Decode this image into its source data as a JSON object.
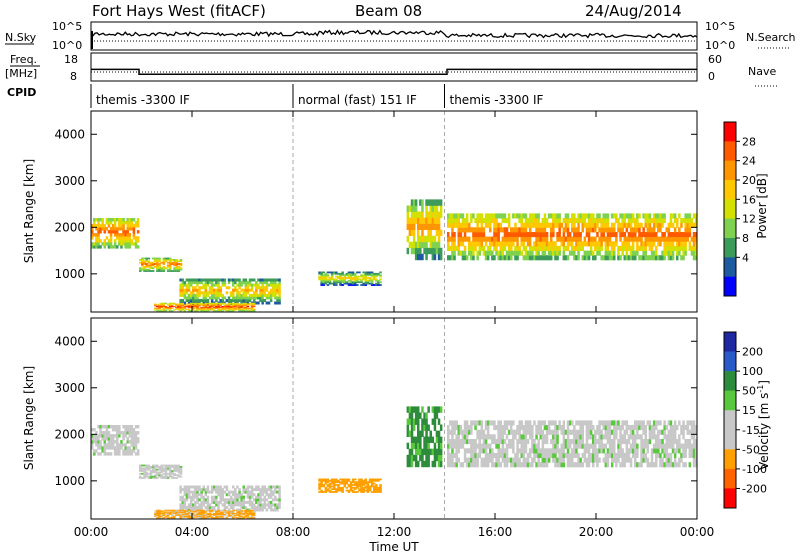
{
  "header": {
    "station": "Fort Hays West (fitACF)",
    "beam": "Beam 08",
    "date": "24/Aug/2014"
  },
  "noise_panel": {
    "left_label": "N.Sky",
    "right_label": "N.Search",
    "left_ticks": [
      "10^5",
      "10^0"
    ],
    "right_ticks": [
      "10^5",
      "10^0"
    ]
  },
  "freq_panel": {
    "left_label_1": "Freq.",
    "left_label_2": "[MHz]",
    "right_label": "Nave",
    "left_ticks": [
      "18",
      "8"
    ],
    "right_ticks": [
      "60",
      "0"
    ],
    "cpid_label": "CPID"
  },
  "cpid_segments": [
    {
      "label": "themis -3300 IF",
      "start_hour": 0,
      "end_hour": 8
    },
    {
      "label": "normal (fast) 151 IF",
      "start_hour": 8,
      "end_hour": 14
    },
    {
      "label": "themis -3300 IF",
      "start_hour": 14,
      "end_hour": 24
    }
  ],
  "power_panel": {
    "ylabel": "Slant Range [km]",
    "yticks": [
      "4000",
      "3000",
      "2000",
      "1000"
    ],
    "colorbar_label": "Power [dB]",
    "colorbar_ticks": [
      "28",
      "24",
      "20",
      "16",
      "12",
      "8",
      "4"
    ],
    "colorbar_colors": [
      "#ff0000",
      "#ff5a00",
      "#ff9600",
      "#ffc800",
      "#d2e100",
      "#7fd24f",
      "#3c9a5a",
      "#1e5aa0",
      "#0000ff"
    ]
  },
  "velocity_panel": {
    "ylabel": "Slant Range [km]",
    "yticks": [
      "4000",
      "3000",
      "2000",
      "1000"
    ],
    "colorbar_label": "Velocity [m s^-1]",
    "colorbar_ticks": [
      "200",
      "100",
      "50",
      "15",
      "-15",
      "-50",
      "-100",
      "-200"
    ],
    "colorbar_colors": [
      "#1e28a0",
      "#285ac8",
      "#2d8c3c",
      "#5ac83c",
      "#c8c8c8",
      "#c8c8c8",
      "#ffa000",
      "#ff6400",
      "#ff0000"
    ]
  },
  "xaxis": {
    "label": "Time UT",
    "ticks": [
      "00:00",
      "04:00",
      "08:00",
      "12:00",
      "16:00",
      "20:00",
      "00:00"
    ]
  },
  "chart_data": {
    "type": "heatmap",
    "title": "Fort Hays West (fitACF)",
    "xlabel": "Time UT",
    "ylabel": "Slant Range [km]",
    "xlim_hours": [
      0,
      24
    ],
    "ylim_km": [
      180,
      4500
    ],
    "frequency_mhz": [
      {
        "start_hour": 0,
        "end_hour": 1.9,
        "value": 12
      },
      {
        "start_hour": 1.9,
        "end_hour": 14.1,
        "value": 10
      },
      {
        "start_hour": 14.1,
        "end_hour": 24,
        "value": 12
      }
    ],
    "power_features": [
      {
        "name": "band-a",
        "start_hour": 0,
        "end_hour": 1.9,
        "range_km": [
          1550,
          2200
        ],
        "peak_db": 26
      },
      {
        "name": "band-b",
        "start_hour": 1.9,
        "end_hour": 3.6,
        "range_km": [
          1050,
          1350
        ],
        "peak_db": 24
      },
      {
        "name": "band-c",
        "start_hour": 3.5,
        "end_hour": 7.5,
        "range_km": [
          350,
          900
        ],
        "peak_db": 20
      },
      {
        "name": "band-d",
        "start_hour": 2.5,
        "end_hour": 6.5,
        "range_km": [
          200,
          380
        ],
        "peak_db": 28
      },
      {
        "name": "band-e",
        "start_hour": 9,
        "end_hour": 11.5,
        "range_km": [
          750,
          1050
        ],
        "peak_db": 18
      },
      {
        "name": "band-f",
        "start_hour": 12.5,
        "end_hour": 13.9,
        "range_km": [
          1300,
          2600
        ],
        "peak_db": 22
      },
      {
        "name": "band-g",
        "start_hour": 14.1,
        "end_hour": 24,
        "range_km": [
          1300,
          2300
        ],
        "peak_db": 26
      }
    ],
    "velocity_features": [
      {
        "name": "band-a",
        "start_hour": 0,
        "end_hour": 1.9,
        "range_km": [
          1550,
          2200
        ],
        "velocity": 0
      },
      {
        "name": "band-b",
        "start_hour": 1.9,
        "end_hour": 3.6,
        "range_km": [
          1050,
          1350
        ],
        "velocity": 0
      },
      {
        "name": "band-c",
        "start_hour": 3.5,
        "end_hour": 7.5,
        "range_km": [
          350,
          900
        ],
        "velocity": 0
      },
      {
        "name": "band-d",
        "start_hour": 2.5,
        "end_hour": 6.5,
        "range_km": [
          200,
          380
        ],
        "velocity": -60
      },
      {
        "name": "band-e",
        "start_hour": 9,
        "end_hour": 11.5,
        "range_km": [
          750,
          1050
        ],
        "velocity": -80
      },
      {
        "name": "band-f",
        "start_hour": 12.5,
        "end_hour": 13.9,
        "range_km": [
          1300,
          2600
        ],
        "velocity": 60
      },
      {
        "name": "band-g",
        "start_hour": 14.1,
        "end_hour": 24,
        "range_km": [
          1300,
          2300
        ],
        "velocity": 0
      }
    ]
  }
}
